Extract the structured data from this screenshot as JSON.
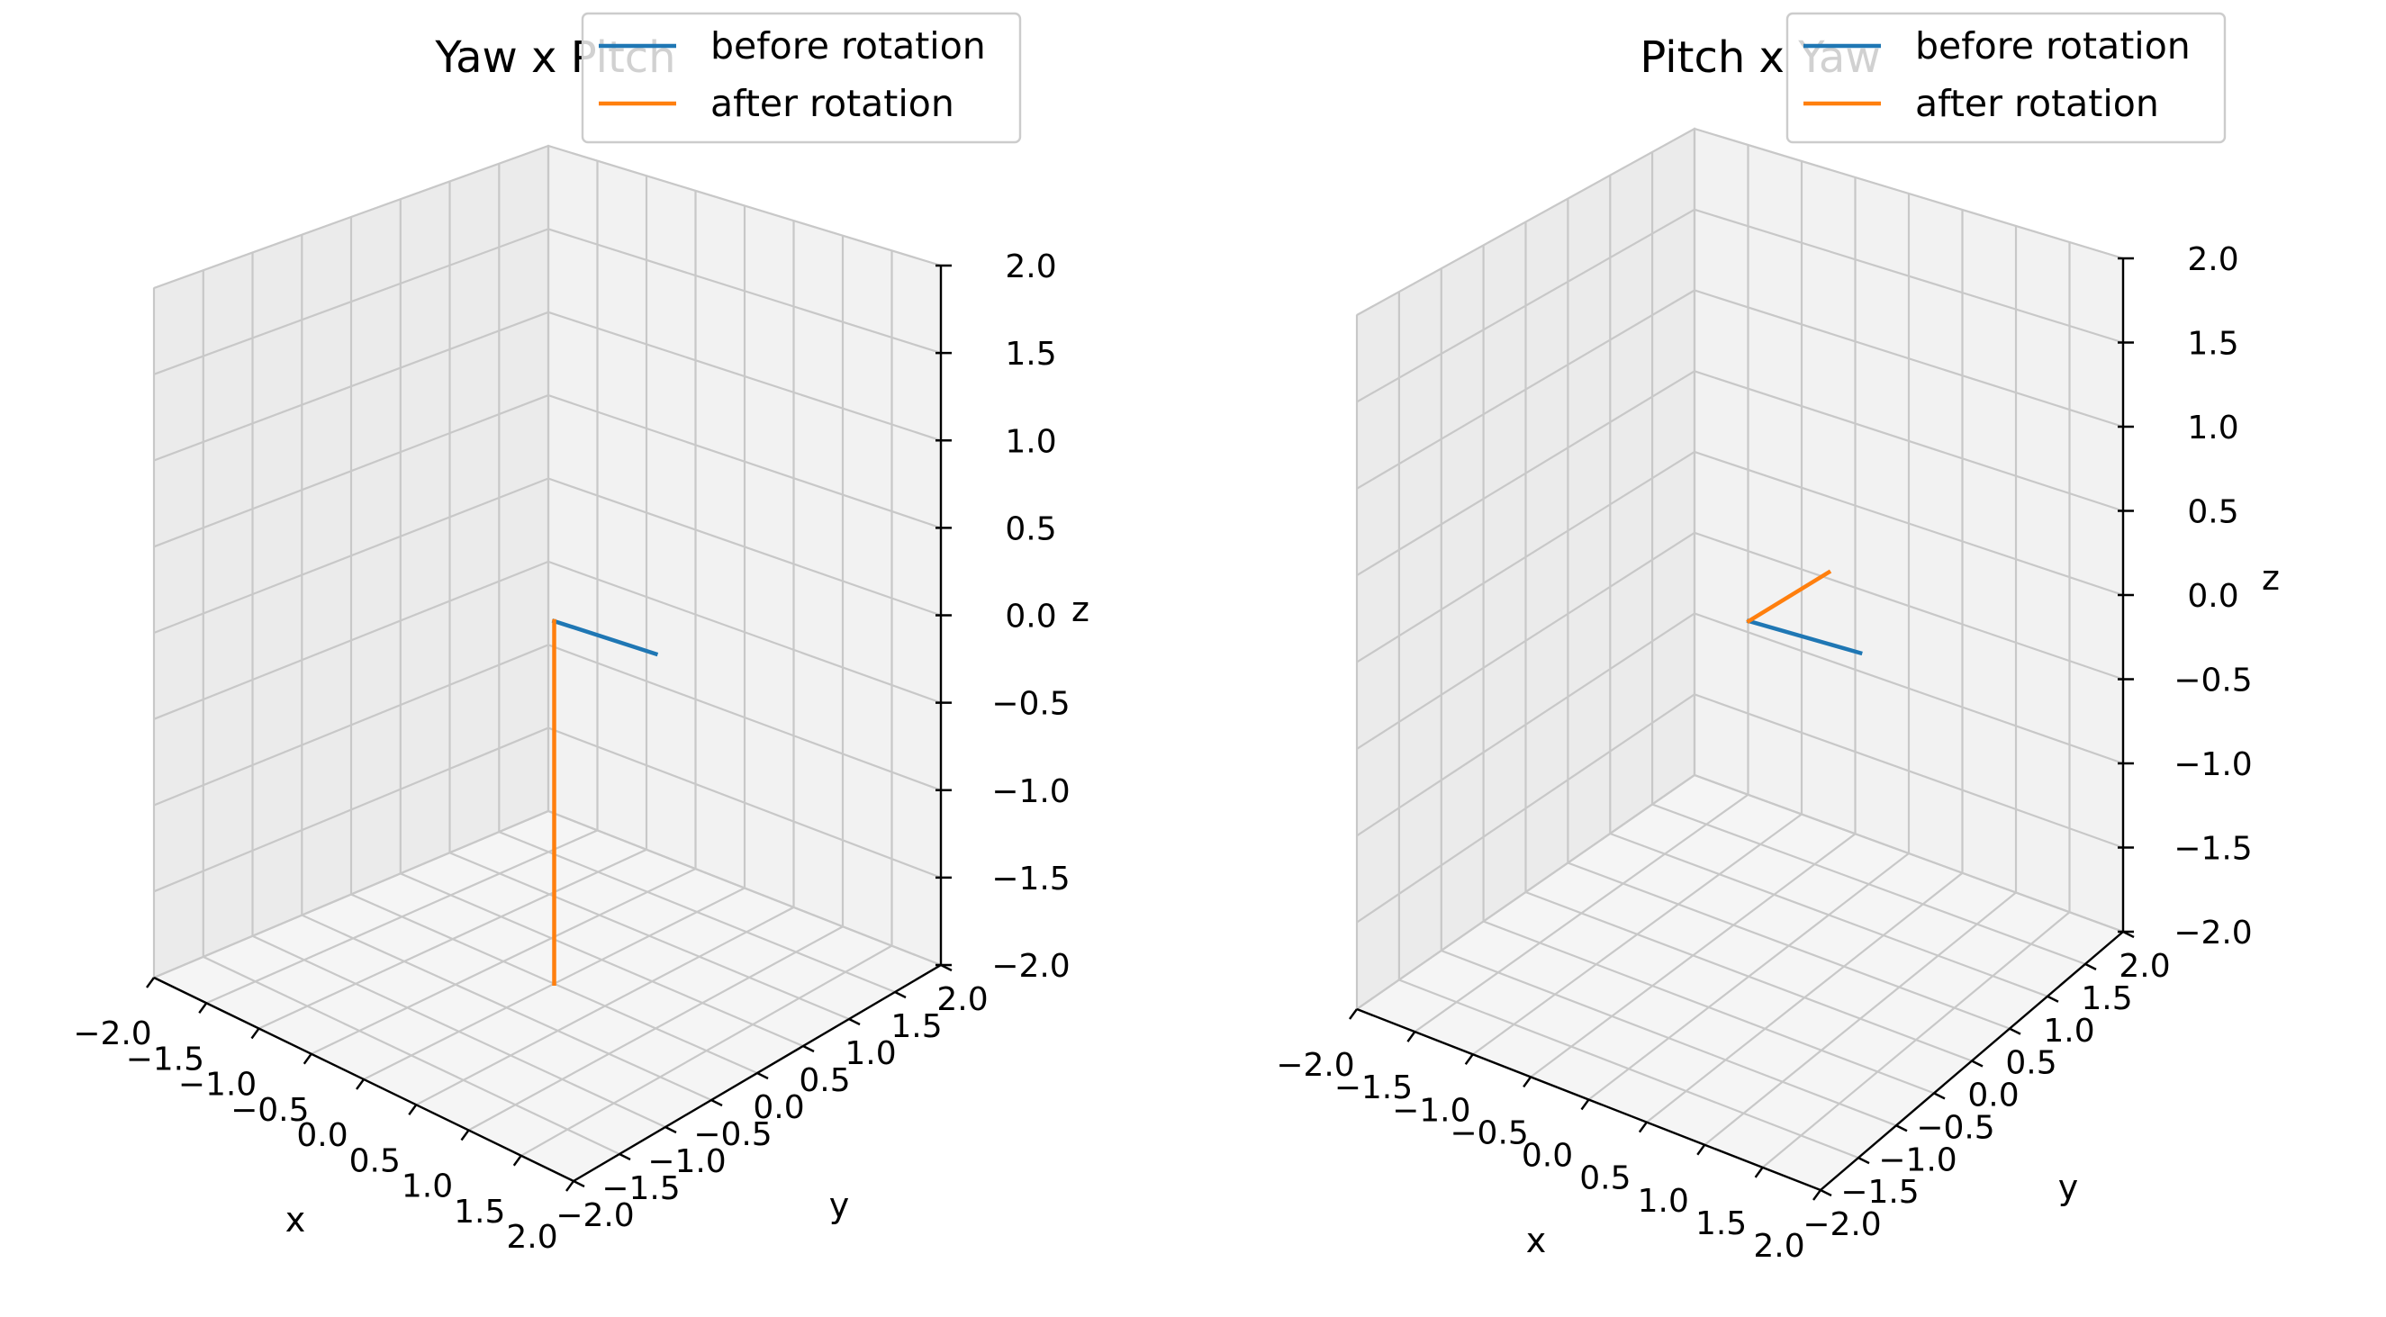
{
  "chart_data": [
    {
      "type": "line3d",
      "title": "Yaw x Pitch",
      "xlabel": "x",
      "ylabel": "y",
      "zlabel": "z",
      "xlim": [
        -2.0,
        2.0
      ],
      "ylim": [
        -2.0,
        2.0
      ],
      "zlim": [
        -2.0,
        2.0
      ],
      "xticks": [
        "−2.0",
        "−1.5",
        "−1.0",
        "−0.5",
        "0.0",
        "0.5",
        "1.0",
        "1.5",
        "2.0"
      ],
      "yticks": [
        "−2.0",
        "−1.5",
        "−1.0",
        "−0.5",
        "0.0",
        "0.5",
        "1.0",
        "1.5",
        "2.0"
      ],
      "zticks": [
        "−2.0",
        "−1.5",
        "−1.0",
        "−0.5",
        "0.0",
        "0.5",
        "1.0",
        "1.5",
        "2.0"
      ],
      "grid": true,
      "legend_position": "top-right",
      "series": [
        {
          "name": "before rotation",
          "color": "#1f77b4",
          "points": [
            [
              0,
              0,
              0
            ],
            [
              1,
              0,
              0
            ]
          ]
        },
        {
          "name": "after rotation",
          "color": "#ff7f0e",
          "points": [
            [
              0,
              0,
              0
            ],
            [
              0,
              0,
              -2
            ]
          ]
        }
      ]
    },
    {
      "type": "line3d",
      "title": "Pitch x Yaw",
      "xlabel": "x",
      "ylabel": "y",
      "zlabel": "z",
      "xlim": [
        -2.0,
        2.0
      ],
      "ylim": [
        -2.0,
        2.0
      ],
      "zlim": [
        -2.0,
        2.0
      ],
      "xticks": [
        "−2.0",
        "−1.5",
        "−1.0",
        "−0.5",
        "0.0",
        "0.5",
        "1.0",
        "1.5",
        "2.0"
      ],
      "yticks": [
        "−2.0",
        "−1.5",
        "−1.0",
        "−0.5",
        "0.0",
        "0.5",
        "1.0",
        "1.5",
        "2.0"
      ],
      "zticks": [
        "−2.0",
        "−1.5",
        "−1.0",
        "−0.5",
        "0.0",
        "0.5",
        "1.0",
        "1.5",
        "2.0"
      ],
      "grid": true,
      "legend_position": "top-right",
      "series": [
        {
          "name": "before rotation",
          "color": "#1f77b4",
          "points": [
            [
              0,
              0,
              0
            ],
            [
              1,
              0,
              0
            ]
          ]
        },
        {
          "name": "after rotation",
          "color": "#ff7f0e",
          "points": [
            [
              0,
              0,
              0
            ],
            [
              0,
              1,
              0
            ]
          ]
        }
      ]
    }
  ]
}
